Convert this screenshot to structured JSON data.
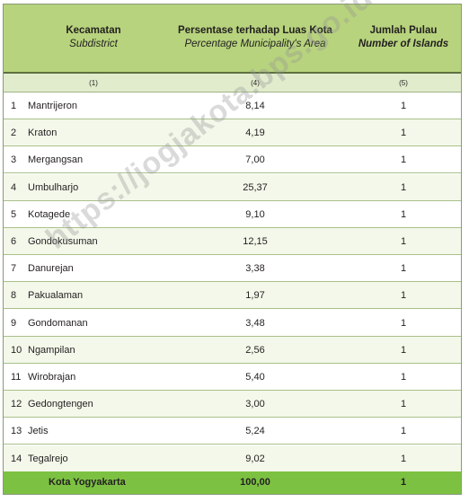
{
  "header": {
    "col1_id": "Kecamatan",
    "col1_en": "Subdistrict",
    "col2_id": "Persentase terhadap Luas Kota",
    "col2_en": "Percentage Municipality's Area",
    "col3_id": "Jumlah Pulau",
    "col3_en": "Number of Islands"
  },
  "column_numbers": [
    "(1)",
    "(4)",
    "(5)"
  ],
  "rows": [
    {
      "no": "1",
      "name": "Mantrijeron",
      "pct": "8,14",
      "islands": "1"
    },
    {
      "no": "2",
      "name": "Kraton",
      "pct": "4,19",
      "islands": "1"
    },
    {
      "no": "3",
      "name": "Mergangsan",
      "pct": "7,00",
      "islands": "1"
    },
    {
      "no": "4",
      "name": "Umbulharjo",
      "pct": "25,37",
      "islands": "1"
    },
    {
      "no": "5",
      "name": "Kotagede",
      "pct": "9,10",
      "islands": "1"
    },
    {
      "no": "6",
      "name": "Gondokusuman",
      "pct": "12,15",
      "islands": "1"
    },
    {
      "no": "7",
      "name": "Danurejan",
      "pct": "3,38",
      "islands": "1"
    },
    {
      "no": "8",
      "name": "Pakualaman",
      "pct": "1,97",
      "islands": "1"
    },
    {
      "no": "9",
      "name": "Gondomanan",
      "pct": "3,48",
      "islands": "1"
    },
    {
      "no": "10",
      "name": "Ngampilan",
      "pct": "2,56",
      "islands": "1"
    },
    {
      "no": "11",
      "name": "Wirobrajan",
      "pct": "5,40",
      "islands": "1"
    },
    {
      "no": "12",
      "name": "Gedongtengen",
      "pct": "3,00",
      "islands": "1"
    },
    {
      "no": "13",
      "name": "Jetis",
      "pct": "5,24",
      "islands": "1"
    },
    {
      "no": "14",
      "name": "Tegalrejo",
      "pct": "9,02",
      "islands": "1"
    }
  ],
  "total": {
    "name": "Kota Yogyakarta",
    "pct": "100,00",
    "islands": "1"
  },
  "watermark": "https://jogjakota.bps.go.id",
  "colors": {
    "header_bg": "#b7d37d",
    "total_bg": "#7cc142"
  }
}
